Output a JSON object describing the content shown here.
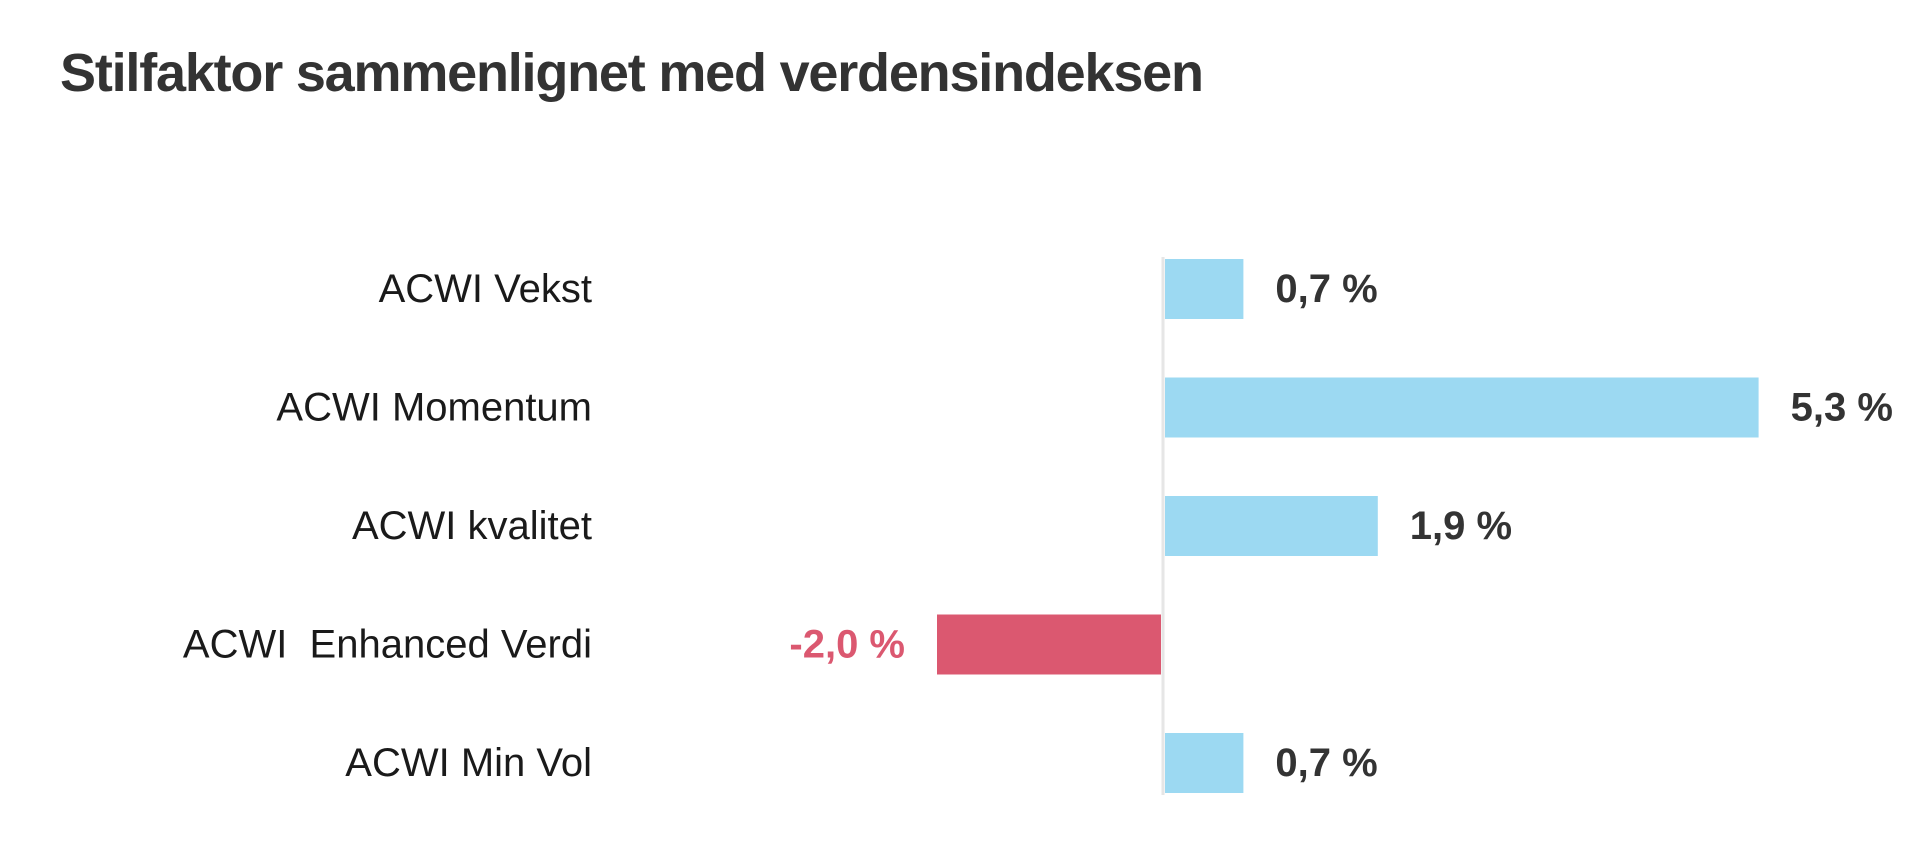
{
  "chart_data": {
    "type": "bar",
    "orientation": "horizontal",
    "title": "Stilfaktor sammenlignet med verdensindeksen",
    "categories": [
      "ACWI Vekst",
      "ACWI Momentum",
      "ACWI kvalitet",
      "ACWI  Enhanced Verdi",
      "ACWI Min Vol"
    ],
    "values": [
      0.7,
      5.3,
      1.9,
      -2.0,
      0.7
    ],
    "value_labels": [
      "0,7 %",
      "5,3 %",
      "1,9 %",
      "-2,0 %",
      "0,7 %"
    ],
    "unit": "%",
    "grid": false,
    "legend": "none",
    "colors": {
      "positive": "#9cd9f2",
      "negative": "#db5870",
      "positive_label": "#333333",
      "negative_label": "#db5870",
      "zero_line": "#e6e6e6"
    }
  }
}
